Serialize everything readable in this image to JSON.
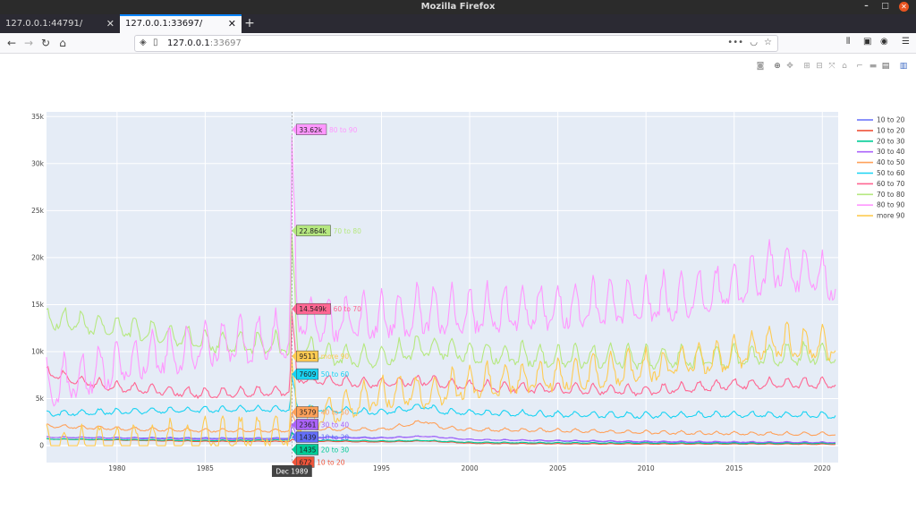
{
  "window": {
    "title": "Mozilla Firefox"
  },
  "tabs": [
    {
      "label": "127.0.0.1:44791/",
      "active": false
    },
    {
      "label": "127.0.0.1:33697/",
      "active": true
    }
  ],
  "url": {
    "host": "127.0.0.1",
    "port": ":33697"
  },
  "colors": {
    "plot_bg": "#e5ecf6",
    "grid": "#ffffff",
    "series": [
      "#636efa",
      "#ef553b",
      "#00cc96",
      "#ab63fa",
      "#ffa15a",
      "#19d3f3",
      "#ff6692",
      "#b6e880",
      "#ff97ff",
      "#fecb52"
    ]
  },
  "chart_data": {
    "type": "line",
    "xlim": [
      1976.0,
      2020.9
    ],
    "ylim": [
      -1800,
      35500
    ],
    "x_ticks": [
      {
        "value": 1980,
        "label": "1980"
      },
      {
        "value": 1985,
        "label": "1985"
      },
      {
        "value": 1990,
        "label": "1990"
      },
      {
        "value": 1995,
        "label": "1995"
      },
      {
        "value": 2000,
        "label": "2000"
      },
      {
        "value": 2005,
        "label": "2005"
      },
      {
        "value": 2010,
        "label": "2010"
      },
      {
        "value": 2015,
        "label": "2015"
      },
      {
        "value": 2020,
        "label": "2020"
      }
    ],
    "y_ticks": [
      {
        "value": 0,
        "label": "0"
      },
      {
        "value": 5000,
        "label": "5k"
      },
      {
        "value": 10000,
        "label": "10k"
      },
      {
        "value": 15000,
        "label": "15k"
      },
      {
        "value": 20000,
        "label": "20k"
      },
      {
        "value": 25000,
        "label": "25k"
      },
      {
        "value": 30000,
        "label": "30k"
      },
      {
        "value": 35000,
        "label": "35k"
      }
    ],
    "legend_position": "right",
    "hover_date": "Dec 1989",
    "hover_x": 1989.92,
    "series": [
      {
        "name": "10 to 20",
        "anchors": [
          [
            1976,
            900
          ],
          [
            1980,
            850
          ],
          [
            1985,
            800
          ],
          [
            1989.8,
            800
          ],
          [
            1989.92,
            1439
          ],
          [
            1990.2,
            950
          ],
          [
            1992,
            900
          ],
          [
            1995,
            850
          ],
          [
            1997.5,
            1000
          ],
          [
            2000,
            650
          ],
          [
            2005,
            500
          ],
          [
            2010,
            400
          ],
          [
            2015,
            350
          ],
          [
            2020.9,
            300
          ]
        ],
        "seasonal": 60,
        "hover": "1439"
      },
      {
        "name": "10 to 20",
        "anchors": [
          [
            1976,
            700
          ],
          [
            1980,
            600
          ],
          [
            1985,
            450
          ],
          [
            1989.8,
            450
          ],
          [
            1989.92,
            672
          ],
          [
            1990.2,
            500
          ],
          [
            1995,
            400
          ],
          [
            1997.5,
            500
          ],
          [
            2000,
            250
          ],
          [
            2005,
            200
          ],
          [
            2010,
            180
          ],
          [
            2015,
            180
          ],
          [
            2020.9,
            150
          ]
        ],
        "seasonal": 40,
        "hover": "672"
      },
      {
        "name": "20 to 30",
        "anchors": [
          [
            1976,
            700
          ],
          [
            1980,
            650
          ],
          [
            1985,
            550
          ],
          [
            1989.8,
            600
          ],
          [
            1989.92,
            1435
          ],
          [
            1990.2,
            600
          ],
          [
            1995,
            500
          ],
          [
            1997.5,
            550
          ],
          [
            2000,
            350
          ],
          [
            2005,
            300
          ],
          [
            2010,
            280
          ],
          [
            2015,
            250
          ],
          [
            2020.9,
            250
          ]
        ],
        "seasonal": 50,
        "hover": "1435"
      },
      {
        "name": "30 to 40",
        "anchors": [
          [
            1976,
            900
          ],
          [
            1980,
            800
          ],
          [
            1985,
            700
          ],
          [
            1989.8,
            700
          ],
          [
            1989.92,
            2361
          ],
          [
            1990.2,
            850
          ],
          [
            1995,
            800
          ],
          [
            1997.5,
            1000
          ],
          [
            2000,
            650
          ],
          [
            2005,
            550
          ],
          [
            2010,
            450
          ],
          [
            2015,
            400
          ],
          [
            2020.9,
            350
          ]
        ],
        "seasonal": 60,
        "hover": "2361"
      },
      {
        "name": "40 to 50",
        "anchors": [
          [
            1976,
            2100
          ],
          [
            1980,
            1800
          ],
          [
            1985,
            1600
          ],
          [
            1989.8,
            1600
          ],
          [
            1989.92,
            3579
          ],
          [
            1990.2,
            1800
          ],
          [
            1995,
            1700
          ],
          [
            1997.5,
            2600
          ],
          [
            1998.5,
            1900
          ],
          [
            2000,
            1700
          ],
          [
            2005,
            1600
          ],
          [
            2010,
            1400
          ],
          [
            2015,
            1300
          ],
          [
            2020.9,
            1200
          ]
        ],
        "seasonal": 200,
        "hover": "3579"
      },
      {
        "name": "50 to 60",
        "anchors": [
          [
            1976,
            3400
          ],
          [
            1980,
            3600
          ],
          [
            1985,
            3800
          ],
          [
            1989.8,
            3900
          ],
          [
            1989.92,
            7609
          ],
          [
            1990.2,
            4100
          ],
          [
            1992,
            3800
          ],
          [
            1995,
            3500
          ],
          [
            1997.5,
            4200
          ],
          [
            1998.5,
            3600
          ],
          [
            2000,
            3500
          ],
          [
            2005,
            3300
          ],
          [
            2010,
            3200
          ],
          [
            2015,
            3300
          ],
          [
            2020.9,
            3200
          ]
        ],
        "seasonal": 350,
        "hover": "7609"
      },
      {
        "name": "60 to 70",
        "anchors": [
          [
            1976,
            7800
          ],
          [
            1978,
            6800
          ],
          [
            1980,
            6200
          ],
          [
            1985,
            5500
          ],
          [
            1989.8,
            5800
          ],
          [
            1989.92,
            14549
          ],
          [
            1990.2,
            7200
          ],
          [
            1992,
            6800
          ],
          [
            1995,
            6600
          ],
          [
            1997.5,
            6900
          ],
          [
            2000,
            6300
          ],
          [
            2005,
            6000
          ],
          [
            2010,
            5800
          ],
          [
            2015,
            6500
          ],
          [
            2020.9,
            6600
          ]
        ],
        "seasonal": 600,
        "hover": "14.549k"
      },
      {
        "name": "70 to 80",
        "anchors": [
          [
            1976,
            13500
          ],
          [
            1980,
            12500
          ],
          [
            1985,
            11000
          ],
          [
            1989.8,
            10500
          ],
          [
            1989.92,
            22864
          ],
          [
            1990.2,
            10500
          ],
          [
            1992,
            9500
          ],
          [
            1995,
            9300
          ],
          [
            1997.5,
            10500
          ],
          [
            2000,
            9800
          ],
          [
            2005,
            9300
          ],
          [
            2010,
            9200
          ],
          [
            2015,
            9300
          ],
          [
            2020.9,
            9800
          ]
        ],
        "seasonal": 1300,
        "hover": "22.864k"
      },
      {
        "name": "80 to 90",
        "anchors": [
          [
            1976,
            6000
          ],
          [
            1980,
            8500
          ],
          [
            1985,
            10500
          ],
          [
            1989.8,
            11500
          ],
          [
            1989.92,
            33620
          ],
          [
            1990.2,
            13500
          ],
          [
            1992,
            13000
          ],
          [
            1995,
            13500
          ],
          [
            1997.5,
            14000
          ],
          [
            2000,
            14000
          ],
          [
            2005,
            14500
          ],
          [
            2010,
            15000
          ],
          [
            2015,
            16500
          ],
          [
            2017.2,
            19000
          ],
          [
            2020.9,
            17500
          ]
        ],
        "seasonal": 2600,
        "hover": "33.62k"
      },
      {
        "name": "more 90",
        "anchors": [
          [
            1976,
            0
          ],
          [
            1980,
            200
          ],
          [
            1985,
            800
          ],
          [
            1989.8,
            1400
          ],
          [
            1989.92,
            9511
          ],
          [
            1990.2,
            2200
          ],
          [
            1992,
            3500
          ],
          [
            1995,
            5500
          ],
          [
            1997.5,
            5500
          ],
          [
            2000,
            6500
          ],
          [
            2005,
            7200
          ],
          [
            2010,
            8200
          ],
          [
            2015,
            9500
          ],
          [
            2017.2,
            11000
          ],
          [
            2020.9,
            10500
          ]
        ],
        "seasonal": 1800,
        "hover": "9511"
      }
    ]
  }
}
